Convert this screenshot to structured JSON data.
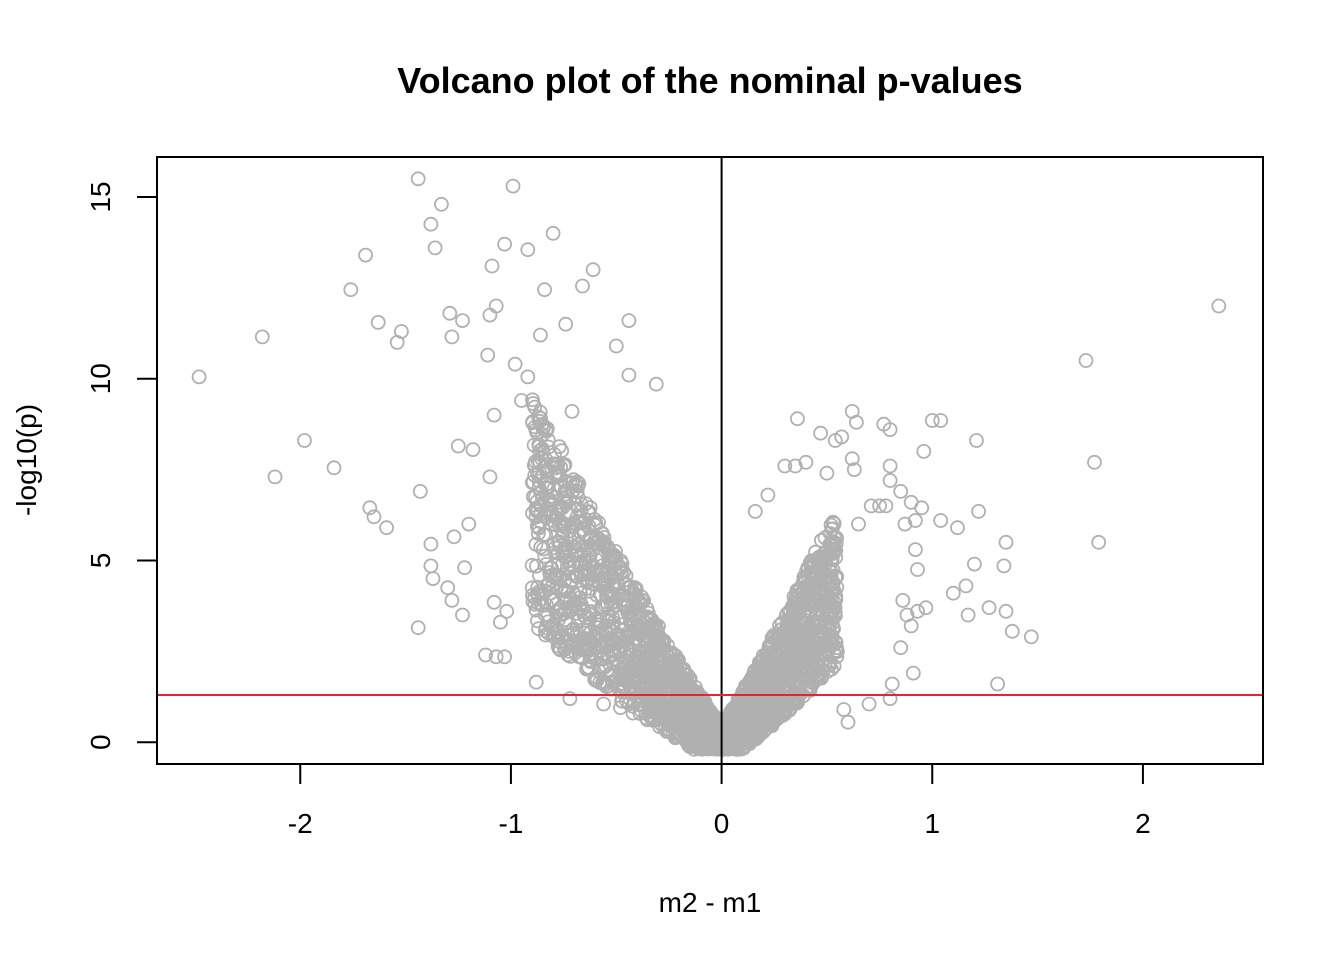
{
  "chart_data": {
    "type": "scatter",
    "title": "Volcano plot of the nominal p-values",
    "xlabel": "m2 - m1",
    "ylabel": "-log10(p)",
    "xlim": [
      -2.68,
      2.57
    ],
    "ylim": [
      -0.6,
      16.1
    ],
    "xticks": [
      -2,
      -1,
      0,
      1,
      2
    ],
    "xtick_labels": [
      "-2",
      "-1",
      "0",
      "1",
      "2"
    ],
    "yticks": [
      0,
      5,
      10,
      15
    ],
    "ytick_labels": [
      "0",
      "5",
      "10",
      "15"
    ],
    "point_color": "#b0b0b0",
    "vline": {
      "x": 0,
      "color": "#000000"
    },
    "hline": {
      "y": 1.3,
      "color": "#e8262a"
    },
    "grid": false,
    "legend": "none",
    "dense_cloud_samples": 2600,
    "points": [
      [
        -2.48,
        10.05
      ],
      [
        -2.18,
        11.15
      ],
      [
        -2.12,
        7.3
      ],
      [
        -1.98,
        8.3
      ],
      [
        -1.84,
        7.55
      ],
      [
        -1.76,
        12.45
      ],
      [
        -1.69,
        13.4
      ],
      [
        -1.67,
        6.45
      ],
      [
        -1.65,
        6.2
      ],
      [
        -1.63,
        11.55
      ],
      [
        -1.59,
        5.9
      ],
      [
        -1.54,
        11.0
      ],
      [
        -1.52,
        11.3
      ],
      [
        -1.44,
        15.5
      ],
      [
        -1.43,
        6.9
      ],
      [
        -1.44,
        3.15
      ],
      [
        -1.38,
        14.25
      ],
      [
        -1.36,
        13.6
      ],
      [
        -1.33,
        14.8
      ],
      [
        -1.38,
        5.45
      ],
      [
        -1.38,
        4.85
      ],
      [
        -1.37,
        4.5
      ],
      [
        -1.3,
        4.25
      ],
      [
        -1.28,
        3.9
      ],
      [
        -1.23,
        3.5
      ],
      [
        -1.22,
        4.8
      ],
      [
        -1.29,
        11.8
      ],
      [
        -1.28,
        11.15
      ],
      [
        -1.27,
        5.65
      ],
      [
        -1.25,
        8.15
      ],
      [
        -1.23,
        11.6
      ],
      [
        -1.2,
        6.0
      ],
      [
        -1.18,
        8.05
      ],
      [
        -1.12,
        2.4
      ],
      [
        -1.07,
        2.35
      ],
      [
        -1.03,
        2.35
      ],
      [
        -1.11,
        10.65
      ],
      [
        -1.1,
        11.75
      ],
      [
        -1.09,
        13.1
      ],
      [
        -1.07,
        12.0
      ],
      [
        -1.03,
        13.7
      ],
      [
        -0.99,
        15.3
      ],
      [
        -0.92,
        13.55
      ],
      [
        -0.86,
        11.2
      ],
      [
        -0.84,
        12.45
      ],
      [
        -0.8,
        14.0
      ],
      [
        -0.74,
        11.5
      ],
      [
        -0.71,
        9.1
      ],
      [
        -0.66,
        12.55
      ],
      [
        -0.61,
        13.0
      ],
      [
        -0.5,
        10.9
      ],
      [
        -0.44,
        11.6
      ],
      [
        -0.44,
        10.1
      ],
      [
        -0.31,
        9.85
      ],
      [
        -1.05,
        3.3
      ],
      [
        -1.02,
        3.6
      ],
      [
        -1.08,
        3.85
      ],
      [
        -0.85,
        4.1
      ],
      [
        -0.88,
        1.65
      ],
      [
        -0.72,
        1.2
      ],
      [
        -0.56,
        1.05
      ],
      [
        -0.48,
        0.95
      ],
      [
        -0.42,
        0.8
      ],
      [
        -1.1,
        7.3
      ],
      [
        -1.08,
        9.0
      ],
      [
        -0.95,
        9.4
      ],
      [
        -0.98,
        10.4
      ],
      [
        -0.92,
        10.05
      ],
      [
        0.16,
        6.35
      ],
      [
        0.22,
        6.8
      ],
      [
        0.3,
        7.6
      ],
      [
        0.35,
        7.6
      ],
      [
        0.4,
        7.7
      ],
      [
        0.36,
        8.9
      ],
      [
        0.47,
        8.5
      ],
      [
        0.5,
        7.4
      ],
      [
        0.54,
        8.3
      ],
      [
        0.57,
        8.4
      ],
      [
        0.62,
        9.1
      ],
      [
        0.64,
        8.8
      ],
      [
        0.62,
        7.8
      ],
      [
        0.63,
        7.5
      ],
      [
        0.65,
        6.0
      ],
      [
        0.71,
        6.5
      ],
      [
        0.75,
        6.5
      ],
      [
        0.78,
        6.5
      ],
      [
        0.8,
        7.2
      ],
      [
        0.8,
        7.6
      ],
      [
        0.77,
        8.75
      ],
      [
        0.8,
        8.6
      ],
      [
        0.85,
        6.9
      ],
      [
        0.87,
        6.0
      ],
      [
        0.9,
        6.6
      ],
      [
        0.92,
        6.1
      ],
      [
        0.95,
        6.45
      ],
      [
        0.96,
        8.0
      ],
      [
        1.0,
        8.85
      ],
      [
        1.04,
        8.85
      ],
      [
        1.21,
        8.3
      ],
      [
        1.04,
        6.1
      ],
      [
        1.12,
        5.9
      ],
      [
        1.22,
        6.35
      ],
      [
        1.16,
        4.3
      ],
      [
        1.2,
        4.9
      ],
      [
        1.1,
        4.1
      ],
      [
        1.27,
        3.7
      ],
      [
        1.17,
        3.5
      ],
      [
        1.35,
        3.6
      ],
      [
        1.38,
        3.05
      ],
      [
        1.47,
        2.9
      ],
      [
        1.35,
        5.5
      ],
      [
        1.34,
        4.85
      ],
      [
        1.31,
        1.6
      ],
      [
        0.92,
        5.3
      ],
      [
        0.93,
        4.75
      ],
      [
        0.97,
        3.7
      ],
      [
        0.93,
        3.6
      ],
      [
        0.9,
        3.2
      ],
      [
        0.86,
        3.9
      ],
      [
        0.88,
        3.5
      ],
      [
        0.85,
        2.6
      ],
      [
        0.91,
        1.9
      ],
      [
        0.81,
        1.6
      ],
      [
        0.8,
        1.2
      ],
      [
        0.7,
        1.05
      ],
      [
        0.6,
        0.55
      ],
      [
        0.58,
        0.9
      ],
      [
        1.73,
        10.5
      ],
      [
        1.77,
        7.7
      ],
      [
        1.79,
        5.5
      ],
      [
        2.36,
        12.0
      ]
    ]
  }
}
